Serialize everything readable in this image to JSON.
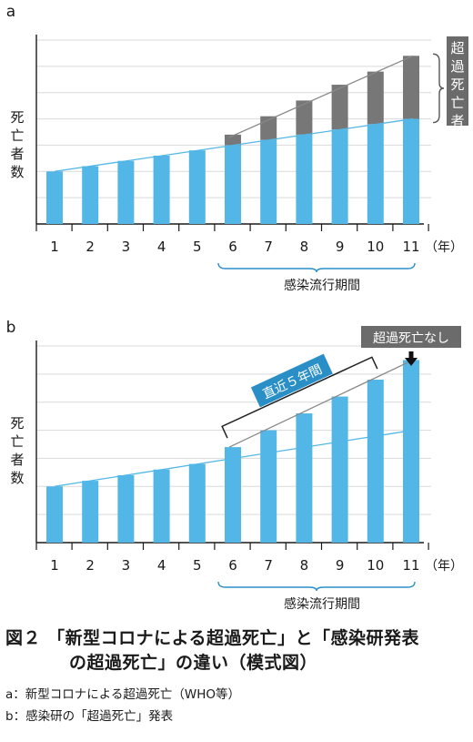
{
  "chart_data": [
    {
      "panel_label": "a",
      "type": "bar",
      "ylabel": "死亡者数",
      "xunit": "（年）",
      "categories": [
        "1",
        "2",
        "3",
        "4",
        "5",
        "6",
        "7",
        "8",
        "9",
        "10",
        "11"
      ],
      "series": [
        {
          "name": "",
          "values": [
            1.0,
            1.1,
            1.2,
            1.3,
            1.4,
            1.5,
            1.6,
            1.7,
            1.8,
            1.9,
            2.0
          ],
          "color": "#52b7e6"
        },
        {
          "name": "超過死亡者",
          "values": [
            0,
            0,
            0,
            0,
            0,
            0.2,
            0.45,
            0.65,
            0.85,
            1.0,
            1.2
          ],
          "color": "#777777"
        }
      ],
      "trend_lines": [
        {
          "from": 1,
          "to": 11,
          "color": "#52b7e6"
        },
        {
          "from": 6,
          "to": 11,
          "color": "#888888"
        }
      ],
      "ylim": [
        0,
        3.5
      ],
      "excess_label": "超過死亡者",
      "period_label": "感染流行期間",
      "period_range": [
        "6",
        "11"
      ]
    },
    {
      "panel_label": "b",
      "type": "bar",
      "ylabel": "死亡者数",
      "xunit": "（年）",
      "categories": [
        "1",
        "2",
        "3",
        "4",
        "5",
        "6",
        "7",
        "8",
        "9",
        "10",
        "11"
      ],
      "values": [
        1.0,
        1.1,
        1.2,
        1.3,
        1.4,
        1.7,
        2.0,
        2.3,
        2.6,
        2.9,
        3.25
      ],
      "color": "#52b7e6",
      "trend_lines": [
        {
          "from": 1,
          "to": 11,
          "color": "#52b7e6"
        },
        {
          "from": 6,
          "to": 11,
          "color": "#888888"
        }
      ],
      "ylim": [
        0,
        3.5
      ],
      "recent_label": "直近５年間",
      "recent_range": [
        "6",
        "10"
      ],
      "no_excess_label": "超過死亡なし",
      "period_label": "感染流行期間",
      "period_range": [
        "6",
        "11"
      ]
    }
  ],
  "caption": {
    "title_line1": "図２ 「新型コロナによる超過死亡」と「感染研発表",
    "title_line2": "の超過死亡」の違い（模式図）",
    "note_a": "a：新型コロナによる超過死亡（WHO等）",
    "note_b": "b：感染研の「超過死亡」発表"
  },
  "colors": {
    "bar": "#52b7e6",
    "excess": "#777777",
    "grid": "#d9d9d9",
    "accent": "#2a8fc7"
  }
}
